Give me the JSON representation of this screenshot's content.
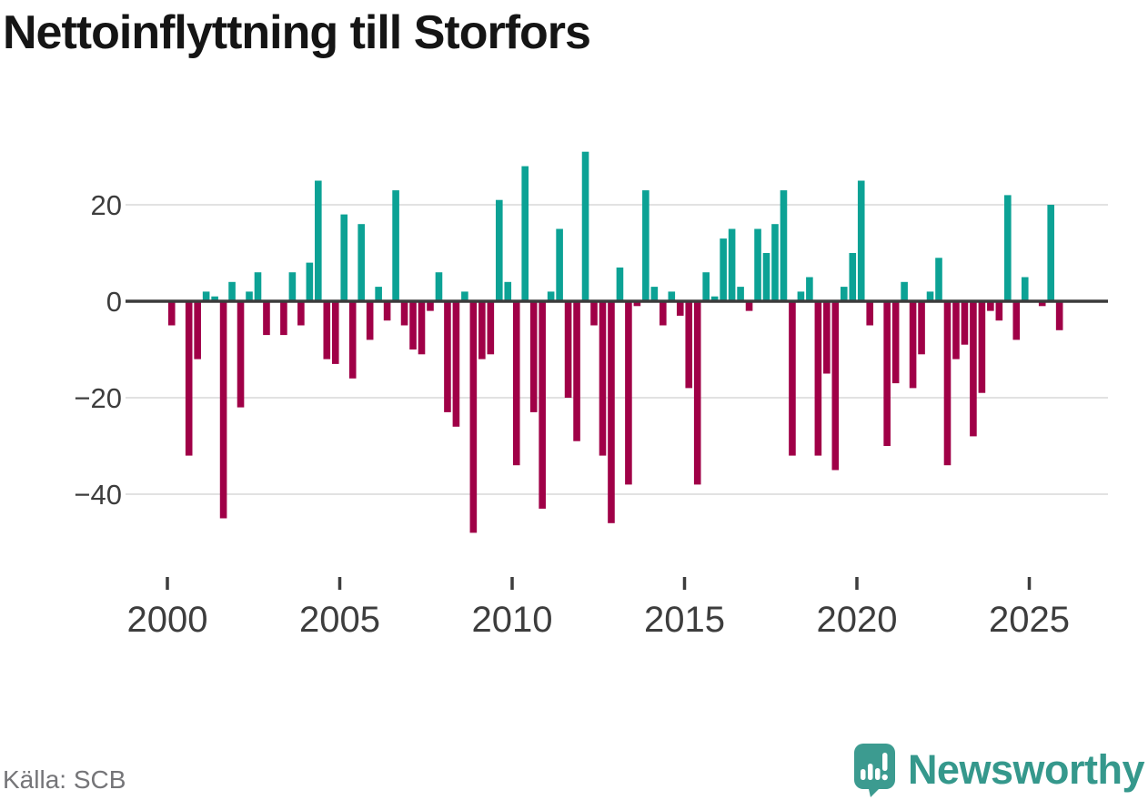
{
  "header": {
    "title": "Nettoinflyttning till Storfors"
  },
  "footer": {
    "source": "Källa: SCB",
    "brand": "Newsworthy"
  },
  "chart_data": {
    "type": "bar",
    "title": "Nettoinflyttning till Storfors",
    "frequency": "quarterly",
    "start": "2000-Q1",
    "end": "2025-Q4",
    "values": [
      -5,
      0,
      -32,
      -12,
      2,
      1,
      -45,
      4,
      -22,
      2,
      6,
      -7,
      0,
      -7,
      6,
      -5,
      8,
      25,
      -12,
      -13,
      18,
      -16,
      16,
      -8,
      3,
      -4,
      23,
      -5,
      -10,
      -11,
      -2,
      6,
      -23,
      -26,
      2,
      -48,
      -12,
      -11,
      21,
      4,
      -34,
      28,
      -23,
      -43,
      2,
      15,
      -20,
      -29,
      31,
      -5,
      -32,
      -46,
      7,
      -38,
      -1,
      23,
      3,
      -5,
      2,
      -3,
      -18,
      -38,
      6,
      1,
      13,
      15,
      3,
      -2,
      15,
      10,
      16,
      23,
      -32,
      2,
      5,
      -32,
      -15,
      -35,
      3,
      10,
      25,
      -5,
      0,
      -30,
      -17,
      4,
      -18,
      -11,
      2,
      9,
      -34,
      -12,
      -9,
      -28,
      -19,
      -2,
      -4,
      22,
      -8,
      5,
      0,
      -1,
      20,
      -6
    ],
    "x_ticks": [
      {
        "label": "2000",
        "year": 2000
      },
      {
        "label": "2005",
        "year": 2005
      },
      {
        "label": "2010",
        "year": 2010
      },
      {
        "label": "2015",
        "year": 2015
      },
      {
        "label": "2020",
        "year": 2020
      },
      {
        "label": "2025",
        "year": 2025
      }
    ],
    "y_ticks": [
      {
        "label": "20",
        "value": 20
      },
      {
        "label": "0",
        "value": 0
      },
      {
        "label": "−20",
        "value": -20
      },
      {
        "label": "−40",
        "value": -40
      }
    ],
    "ylim": [
      -50,
      33
    ],
    "grid": true,
    "legend": false,
    "colors": {
      "positive": "#0ca295",
      "negative": "#a00047",
      "zero_line": "#3b3b3b",
      "grid": "#e2e2e2",
      "axis_text": "#3d3d3d",
      "brand_teal": "#3c9b90"
    }
  }
}
